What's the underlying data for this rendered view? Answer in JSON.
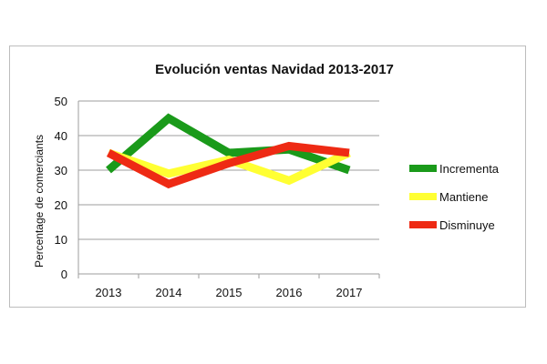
{
  "chart_data": {
    "type": "line",
    "title": "Evolución ventas Navidad 2013-2017",
    "xlabel": "",
    "ylabel": "Percentage de comerciants",
    "categories": [
      "2013",
      "2014",
      "2015",
      "2016",
      "2017"
    ],
    "ylim": [
      0,
      50
    ],
    "yticks": [
      0,
      10,
      20,
      30,
      40,
      50
    ],
    "grid": true,
    "legend": "right",
    "series": [
      {
        "name": "Incrementa",
        "color": "#1a9a1a",
        "values": [
          30,
          45,
          35,
          36,
          30
        ]
      },
      {
        "name": "Mantiene",
        "color": "#ffff33",
        "values": [
          35,
          29,
          33,
          27,
          35
        ]
      },
      {
        "name": "Disminuye",
        "color": "#ee2a14",
        "values": [
          35,
          26,
          32,
          37,
          35
        ]
      }
    ]
  }
}
